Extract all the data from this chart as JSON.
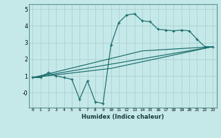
{
  "title": "",
  "xlabel": "Humidex (Indice chaleur)",
  "bg_color": "#c5e8e8",
  "grid_color": "#add0d0",
  "line_color": "#1a6b6b",
  "xlim": [
    -0.5,
    23.5
  ],
  "ylim": [
    -0.9,
    5.3
  ],
  "series1_x": [
    0,
    1,
    2,
    3,
    4,
    5,
    6,
    7,
    8,
    9,
    10,
    11,
    12,
    13,
    14,
    15,
    16,
    17,
    18,
    19,
    20,
    21,
    22,
    23
  ],
  "series1_y": [
    0.9,
    0.9,
    1.2,
    1.0,
    0.9,
    0.8,
    -0.4,
    0.7,
    -0.55,
    -0.65,
    2.85,
    4.2,
    4.65,
    4.72,
    4.3,
    4.25,
    3.8,
    3.75,
    3.7,
    3.75,
    3.7,
    3.2,
    2.75,
    2.75
  ],
  "line2_x": [
    0,
    23
  ],
  "line2_y": [
    0.9,
    2.75
  ],
  "line3_x": [
    0,
    10,
    23
  ],
  "line3_y": [
    0.9,
    1.45,
    2.75
  ],
  "line4_x": [
    0,
    14,
    23
  ],
  "line4_y": [
    0.9,
    2.5,
    2.75
  ],
  "xtick_labels": [
    "0",
    "1",
    "2",
    "3",
    "4",
    "5",
    "6",
    "7",
    "8",
    "9",
    "10",
    "11",
    "12",
    "13",
    "14",
    "15",
    "16",
    "17",
    "18",
    "19",
    "20",
    "21",
    "22",
    "23"
  ],
  "yticks": [
    -0.0,
    1,
    2,
    3,
    4,
    5
  ],
  "ytick_labels": [
    "-0",
    "1",
    "2",
    "3",
    "4",
    "5"
  ]
}
